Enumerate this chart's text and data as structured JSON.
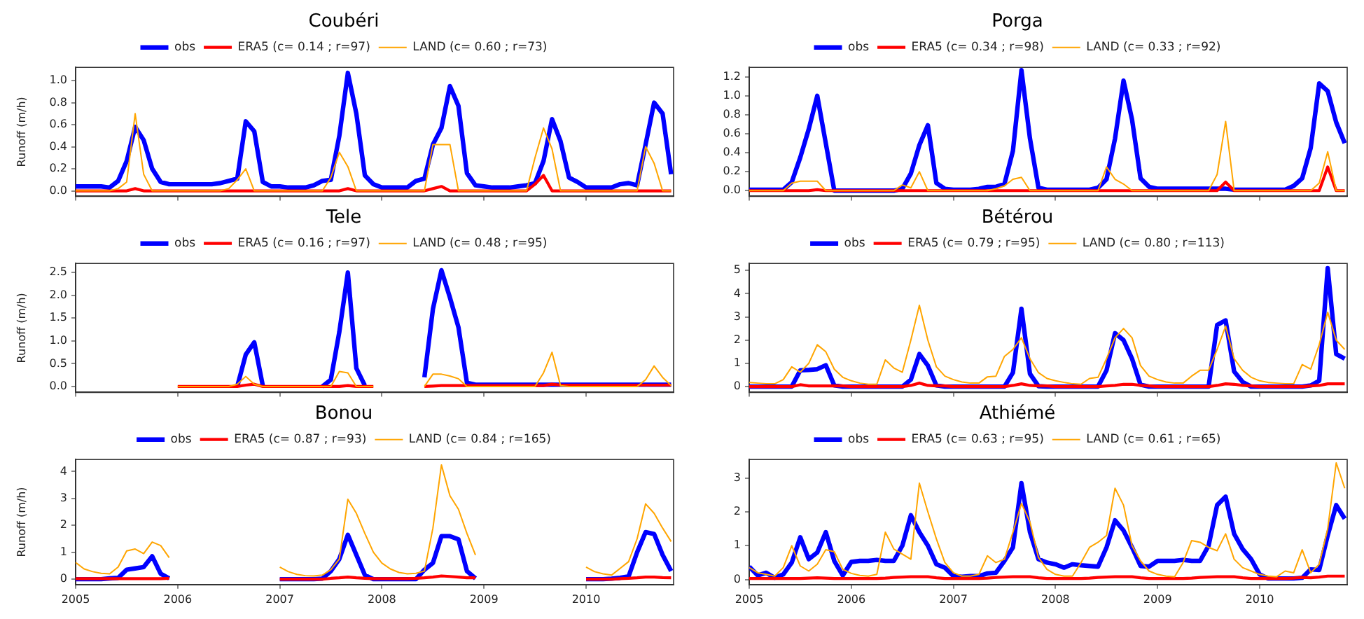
{
  "chart_data": [
    {
      "type": "line",
      "title": "Coubéri",
      "ylabel": "Runoff (m/h)",
      "legend": "top",
      "tick_labels": "y",
      "x": [
        "2005-01",
        "2005-02",
        "2005-03",
        "2005-04",
        "2005-05",
        "2005-06",
        "2005-07",
        "2005-08",
        "2005-09",
        "2005-10",
        "2005-11",
        "2005-12",
        "2006-01",
        "2006-02",
        "2006-03",
        "2006-04",
        "2006-05",
        "2006-06",
        "2006-07",
        "2006-08",
        "2006-09",
        "2006-10",
        "2006-11",
        "2006-12",
        "2007-01",
        "2007-02",
        "2007-03",
        "2007-04",
        "2007-05",
        "2007-06",
        "2007-07",
        "2007-08",
        "2007-09",
        "2007-10",
        "2007-11",
        "2007-12",
        "2008-01",
        "2008-02",
        "2008-03",
        "2008-04",
        "2008-05",
        "2008-06",
        "2008-07",
        "2008-08",
        "2008-09",
        "2008-10",
        "2008-11",
        "2008-12",
        "2009-01",
        "2009-02",
        "2009-03",
        "2009-04",
        "2009-05",
        "2009-06",
        "2009-07",
        "2009-08",
        "2009-09",
        "2009-10",
        "2009-11",
        "2009-12",
        "2010-01",
        "2010-02",
        "2010-03",
        "2010-04",
        "2010-05",
        "2010-06",
        "2010-07",
        "2010-08",
        "2010-09",
        "2010-10",
        "2010-11"
      ],
      "xlim": [
        "2005-01",
        "2010-11-10"
      ],
      "xticks": [
        "2005",
        "2006",
        "2007",
        "2008",
        "2009",
        "2010"
      ],
      "ylim": [
        -0.05,
        1.12
      ],
      "yticks": [
        {
          "value": 0,
          "label": "0.0"
        },
        {
          "value": 0.2,
          "label": "0.2"
        },
        {
          "value": 0.4,
          "label": "0.4"
        },
        {
          "value": 0.6,
          "label": "0.6"
        },
        {
          "value": 0.8,
          "label": "0.8"
        },
        {
          "value": 1,
          "label": "1.0"
        }
      ],
      "series": [
        {
          "name": "obs",
          "color": "#0000ff",
          "values": [
            0.04,
            0.04,
            0.04,
            0.04,
            0.03,
            0.09,
            0.27,
            0.58,
            0.46,
            0.2,
            0.08,
            0.06,
            0.06,
            0.06,
            0.06,
            0.06,
            0.06,
            0.07,
            0.09,
            0.11,
            0.63,
            0.54,
            0.08,
            0.04,
            0.04,
            0.03,
            0.03,
            0.03,
            0.05,
            0.09,
            0.1,
            0.5,
            1.07,
            0.7,
            0.14,
            0.06,
            0.03,
            0.03,
            0.03,
            0.03,
            0.09,
            0.11,
            0.42,
            0.57,
            0.95,
            0.77,
            0.16,
            0.05,
            0.04,
            0.03,
            0.03,
            0.03,
            0.04,
            0.05,
            0.07,
            0.27,
            0.65,
            0.45,
            0.12,
            0.08,
            0.03,
            0.03,
            0.03,
            0.03,
            0.06,
            0.07,
            0.05,
            0.42,
            0.8,
            0.7,
            0.15
          ]
        },
        {
          "name": "ERA5 (c= 0.14 ; r=97)",
          "color": "#ff0000",
          "values": [
            0,
            0,
            0,
            0,
            0,
            0,
            0,
            0.02,
            0,
            0,
            0,
            0,
            0,
            0,
            0,
            0,
            0,
            0,
            0,
            0,
            0,
            0,
            0,
            0,
            0,
            0,
            0,
            0,
            0,
            0,
            0,
            0,
            0.02,
            0,
            0,
            0,
            0,
            0,
            0,
            0,
            0,
            0,
            0.02,
            0.04,
            0,
            0,
            0,
            0,
            0,
            0,
            0,
            0,
            0,
            0,
            0.06,
            0.14,
            0,
            0,
            0,
            0,
            0,
            0,
            0,
            0,
            0,
            0,
            0,
            0,
            0,
            0,
            0
          ]
        },
        {
          "name": "LAND (c= 0.60 ; r=73)",
          "color": "#ffa500",
          "values": [
            0,
            0,
            0,
            0,
            0,
            0.02,
            0.08,
            0.7,
            0.15,
            0,
            0,
            0,
            0,
            0,
            0,
            0,
            0,
            0,
            0.02,
            0.1,
            0.2,
            0,
            0,
            0,
            0,
            0,
            0,
            0,
            0,
            0,
            0.12,
            0.35,
            0.22,
            0,
            0,
            0,
            0,
            0,
            0,
            0,
            0,
            0,
            0.42,
            0.42,
            0.42,
            0,
            0,
            0,
            0,
            0,
            0,
            0,
            0,
            0,
            0.3,
            0.57,
            0.38,
            0,
            0,
            0,
            0,
            0,
            0,
            0,
            0,
            0,
            0,
            0.4,
            0.25,
            0,
            0
          ]
        }
      ]
    },
    {
      "type": "line",
      "title": "Porga",
      "legend": "top",
      "tick_labels": "y",
      "x": [
        "2005-01",
        "2005-02",
        "2005-03",
        "2005-04",
        "2005-05",
        "2005-06",
        "2005-07",
        "2005-08",
        "2005-09",
        "2005-10",
        "2005-11",
        "2005-12",
        "2006-01",
        "2006-02",
        "2006-03",
        "2006-04",
        "2006-05",
        "2006-06",
        "2006-07",
        "2006-08",
        "2006-09",
        "2006-10",
        "2006-11",
        "2006-12",
        "2007-01",
        "2007-02",
        "2007-03",
        "2007-04",
        "2007-05",
        "2007-06",
        "2007-07",
        "2007-08",
        "2007-09",
        "2007-10",
        "2007-11",
        "2007-12",
        "2008-01",
        "2008-02",
        "2008-03",
        "2008-04",
        "2008-05",
        "2008-06",
        "2008-07",
        "2008-08",
        "2008-09",
        "2008-10",
        "2008-11",
        "2008-12",
        "2009-01",
        "2009-02",
        "2009-03",
        "2009-04",
        "2009-05",
        "2009-06",
        "2009-07",
        "2009-08",
        "2009-09",
        "2009-10",
        "2009-11",
        "2009-12",
        "2010-01",
        "2010-02",
        "2010-03",
        "2010-04",
        "2010-05",
        "2010-06",
        "2010-07",
        "2010-08",
        "2010-09",
        "2010-10",
        "2010-11"
      ],
      "xlim": [
        "2005-01",
        "2010-11-10"
      ],
      "xticks": [
        "2005",
        "2006",
        "2007",
        "2008",
        "2009",
        "2010"
      ],
      "ylim": [
        -0.06,
        1.3
      ],
      "yticks": [
        {
          "value": 0,
          "label": "0.0"
        },
        {
          "value": 0.2,
          "label": "0.2"
        },
        {
          "value": 0.4,
          "label": "0.4"
        },
        {
          "value": 0.6,
          "label": "0.6"
        },
        {
          "value": 0.8,
          "label": "0.8"
        },
        {
          "value": 1,
          "label": "1.0"
        },
        {
          "value": 1.2,
          "label": "1.2"
        }
      ],
      "series": [
        {
          "name": "obs",
          "color": "#0000ff",
          "values": [
            0.01,
            0.01,
            0.01,
            0.01,
            0.01,
            0.09,
            0.35,
            0.65,
            1.0,
            0.5,
            0,
            0,
            0,
            0,
            0,
            0,
            0,
            0,
            0.02,
            0.18,
            0.48,
            0.69,
            0.08,
            0.02,
            0.01,
            0.01,
            0.01,
            0.02,
            0.04,
            0.04,
            0.07,
            0.42,
            1.27,
            0.55,
            0.03,
            0.01,
            0.01,
            0.01,
            0.01,
            0.01,
            0.01,
            0.03,
            0.12,
            0.55,
            1.16,
            0.75,
            0.13,
            0.04,
            0.02,
            0.02,
            0.02,
            0.02,
            0.02,
            0.02,
            0.02,
            0.02,
            0.02,
            0.01,
            0.01,
            0.01,
            0.01,
            0.01,
            0.01,
            0.01,
            0.05,
            0.13,
            0.45,
            1.13,
            1.05,
            0.72,
            0.5
          ]
        },
        {
          "name": "ERA5 (c= 0.34 ; r=98)",
          "color": "#ff0000",
          "values": [
            0,
            0,
            0,
            0,
            0,
            0,
            0,
            0,
            0.01,
            0,
            0,
            0,
            0,
            0,
            0,
            0,
            0,
            0,
            0,
            0,
            0,
            0,
            0,
            0,
            0,
            0,
            0,
            0,
            0,
            0,
            0,
            0,
            0,
            0,
            0,
            0,
            0,
            0,
            0,
            0,
            0,
            0,
            0,
            0,
            0,
            0,
            0,
            0,
            0,
            0,
            0,
            0,
            0,
            0,
            0,
            0,
            0.09,
            0,
            0,
            0,
            0,
            0,
            0,
            0,
            0,
            0,
            0,
            0,
            0.25,
            0,
            0
          ]
        },
        {
          "name": "LAND (c= 0.33 ; r=92)",
          "color": "#ffa500",
          "values": [
            0,
            0,
            0,
            0,
            0,
            0.08,
            0.1,
            0.1,
            0.1,
            0,
            0,
            0,
            0,
            0,
            0,
            0,
            0,
            0,
            0.06,
            0.03,
            0.2,
            0,
            0,
            0,
            0,
            0,
            0,
            0,
            0,
            0.02,
            0.05,
            0.12,
            0.14,
            0,
            0,
            0,
            0,
            0,
            0,
            0,
            0,
            0,
            0.25,
            0.12,
            0.07,
            0,
            0,
            0,
            0,
            0,
            0,
            0,
            0,
            0,
            0,
            0.17,
            0.73,
            0,
            0,
            0,
            0,
            0,
            0,
            0,
            0,
            0,
            0,
            0.08,
            0.41,
            0,
            0
          ]
        }
      ]
    },
    {
      "type": "line",
      "title": "Tele",
      "ylabel": "Runoff (m/h)",
      "legend": "top",
      "tick_labels": "y",
      "x": [
        "2006-01",
        "2006-02",
        "2006-03",
        "2006-04",
        "2006-05",
        "2006-06",
        "2006-07",
        "2006-08",
        "2006-09",
        "2006-10",
        "2006-11",
        "2006-12",
        "2007-01",
        "2007-02",
        "2007-03",
        "2007-04",
        "2007-05",
        "2007-06",
        "2007-07",
        "2007-08",
        "2007-09",
        "2007-10",
        "2007-11",
        "2007-12",
        "2008-01",
        "2008-02",
        "2008-03",
        "2008-04",
        "2008-05",
        "2008-06",
        "2008-07",
        "2008-08",
        "2008-09",
        "2008-10",
        "2008-11",
        "2008-12",
        "2009-01",
        "2009-02",
        "2009-03",
        "2009-04",
        "2009-05",
        "2009-06",
        "2009-07",
        "2009-08",
        "2009-09",
        "2009-10",
        "2009-11",
        "2009-12",
        "2010-01",
        "2010-02",
        "2010-03",
        "2010-04",
        "2010-05",
        "2010-06",
        "2010-07",
        "2010-08",
        "2010-09",
        "2010-10",
        "2010-11"
      ],
      "xlim": [
        "2005-01",
        "2010-11-10"
      ],
      "xticks": [
        "2005",
        "2006",
        "2007",
        "2008",
        "2009",
        "2010"
      ],
      "ylim": [
        -0.13,
        2.7
      ],
      "yticks": [
        {
          "value": 0,
          "label": "0.0"
        },
        {
          "value": 0.5,
          "label": "0.5"
        },
        {
          "value": 1,
          "label": "1.0"
        },
        {
          "value": 1.5,
          "label": "1.5"
        },
        {
          "value": 2,
          "label": "2.0"
        },
        {
          "value": 2.5,
          "label": "2.5"
        }
      ],
      "series": [
        {
          "name": "obs",
          "color": "#0000ff",
          "values": [
            null,
            null,
            null,
            null,
            null,
            null,
            null,
            0,
            0.7,
            0.97,
            0.02,
            null,
            null,
            null,
            null,
            null,
            null,
            0,
            0.15,
            1.2,
            2.5,
            0.4,
            0.02,
            null,
            null,
            null,
            null,
            null,
            null,
            0.2,
            1.7,
            2.55,
            1.95,
            1.3,
            0.08,
            0.04,
            0.04,
            0.04,
            0.04,
            0.04,
            0.04,
            0.04,
            0.04,
            0.04,
            0.04,
            0.04,
            0.04,
            0.04,
            0.04,
            0.04,
            0.04,
            0.04,
            0.04,
            0.04,
            0.04,
            0.04,
            0.04,
            0.04,
            0.04
          ]
        },
        {
          "name": "ERA5 (c= 0.16 ; r=97)",
          "color": "#ff0000",
          "values": [
            0,
            0,
            0,
            0,
            0,
            0,
            0,
            0,
            0.03,
            0.05,
            0,
            0,
            0,
            0,
            0,
            0,
            0,
            0,
            0,
            0,
            0.02,
            0,
            0,
            0,
            null,
            null,
            null,
            null,
            null,
            0,
            0.01,
            0.02,
            0.02,
            0.02,
            0.02,
            0.02,
            0.02,
            0.02,
            0.02,
            0.02,
            0.02,
            0.02,
            0.02,
            0.02,
            0.05,
            0.03,
            0.03,
            0.03,
            0.03,
            0.03,
            0.03,
            0.03,
            0.03,
            0.03,
            0.03,
            0.03,
            0.03,
            0.03,
            0.03
          ]
        },
        {
          "name": "LAND (c= 0.48 ; r=95)",
          "color": "#ffa500",
          "values": [
            0,
            0,
            0,
            0,
            0,
            0,
            0,
            0.05,
            0.22,
            0.05,
            0,
            0,
            0,
            0,
            0,
            0,
            0,
            0,
            0,
            0.33,
            0.3,
            0,
            0,
            0,
            null,
            null,
            null,
            null,
            null,
            0,
            0.27,
            0.27,
            0.23,
            0.17,
            0,
            0,
            0,
            0,
            0,
            0,
            0,
            0,
            0,
            0.3,
            0.75,
            0.02,
            0,
            0,
            0,
            0,
            0,
            0,
            0,
            0,
            0,
            0.15,
            0.45,
            0.2,
            0.02
          ]
        }
      ]
    },
    {
      "type": "line",
      "title": "Bétérou",
      "legend": "top",
      "tick_labels": "y",
      "x": [
        "2005-01",
        "2005-02",
        "2005-03",
        "2005-04",
        "2005-05",
        "2005-06",
        "2005-07",
        "2005-08",
        "2005-09",
        "2005-10",
        "2005-11",
        "2005-12",
        "2006-01",
        "2006-02",
        "2006-03",
        "2006-04",
        "2006-05",
        "2006-06",
        "2006-07",
        "2006-08",
        "2006-09",
        "2006-10",
        "2006-11",
        "2006-12",
        "2007-01",
        "2007-02",
        "2007-03",
        "2007-04",
        "2007-05",
        "2007-06",
        "2007-07",
        "2007-08",
        "2007-09",
        "2007-10",
        "2007-11",
        "2007-12",
        "2008-01",
        "2008-02",
        "2008-03",
        "2008-04",
        "2008-05",
        "2008-06",
        "2008-07",
        "2008-08",
        "2008-09",
        "2008-10",
        "2008-11",
        "2008-12",
        "2009-01",
        "2009-02",
        "2009-03",
        "2009-04",
        "2009-05",
        "2009-06",
        "2009-07",
        "2009-08",
        "2009-09",
        "2009-10",
        "2009-11",
        "2009-12",
        "2010-01",
        "2010-02",
        "2010-03",
        "2010-04",
        "2010-05",
        "2010-06",
        "2010-07",
        "2010-08",
        "2010-09",
        "2010-10",
        "2010-11"
      ],
      "xlim": [
        "2005-01",
        "2010-11-10"
      ],
      "xticks": [
        "2005",
        "2006",
        "2007",
        "2008",
        "2009",
        "2010"
      ],
      "ylim": [
        -0.25,
        5.3
      ],
      "yticks": [
        0,
        1,
        2,
        3,
        4,
        5
      ],
      "series": [
        {
          "name": "obs",
          "color": "#0000ff",
          "values": [
            0,
            0,
            0,
            0,
            0,
            0,
            0.7,
            0.72,
            0.75,
            0.92,
            0.05,
            0,
            0,
            0,
            0,
            0,
            0,
            0,
            0,
            0.3,
            1.4,
            0.9,
            0.05,
            0,
            0,
            0,
            0,
            0,
            0,
            0,
            0,
            0.6,
            3.35,
            0.55,
            0.02,
            0,
            0,
            0,
            0,
            0,
            0,
            0,
            0.7,
            2.3,
            2.0,
            1.2,
            0.08,
            0,
            0,
            0,
            0,
            0,
            0,
            0,
            0,
            2.65,
            2.85,
            0.65,
            0.2,
            0,
            0,
            0,
            0,
            0,
            0,
            0,
            0.05,
            0.25,
            5.1,
            1.4,
            1.2
          ]
        },
        {
          "name": "ERA5 (c= 0.79 ; r=95)",
          "color": "#ff0000",
          "values": [
            0,
            0,
            0,
            0,
            0,
            0,
            0.08,
            0.03,
            0.03,
            0.03,
            0.03,
            0.03,
            0,
            0,
            0,
            0,
            0,
            0,
            0,
            0.05,
            0.15,
            0.05,
            0.03,
            0.03,
            0,
            0,
            0,
            0,
            0,
            0,
            0,
            0.05,
            0.12,
            0.05,
            0.03,
            0.03,
            0,
            0,
            0,
            0,
            0,
            0,
            0.03,
            0.05,
            0.1,
            0.1,
            0.05,
            0.03,
            0,
            0,
            0,
            0,
            0,
            0,
            0,
            0.05,
            0.12,
            0.1,
            0.05,
            0.03,
            0,
            0,
            0,
            0,
            0,
            0,
            0.03,
            0.05,
            0.12,
            0.12,
            0.12
          ]
        },
        {
          "name": "LAND (c= 0.80 ; r=113)",
          "color": "#ffa500",
          "values": [
            0.18,
            0.15,
            0.12,
            0.12,
            0.3,
            0.85,
            0.62,
            1.0,
            1.8,
            1.5,
            0.75,
            0.4,
            0.25,
            0.15,
            0.1,
            0.1,
            1.15,
            0.8,
            0.62,
            2.0,
            3.5,
            2.0,
            0.85,
            0.45,
            0.3,
            0.2,
            0.15,
            0.15,
            0.42,
            0.45,
            1.3,
            1.6,
            2.1,
            1.2,
            0.6,
            0.35,
            0.25,
            0.18,
            0.12,
            0.1,
            0.35,
            0.4,
            1.2,
            2.1,
            2.5,
            2.1,
            0.9,
            0.45,
            0.3,
            0.2,
            0.15,
            0.15,
            0.45,
            0.7,
            0.7,
            1.6,
            2.6,
            1.2,
            0.7,
            0.4,
            0.25,
            0.18,
            0.15,
            0.12,
            0.12,
            0.95,
            0.75,
            1.8,
            3.2,
            2.0,
            1.6
          ]
        }
      ]
    },
    {
      "type": "line",
      "title": "Bonou",
      "ylabel": "Runoff (m/h)",
      "legend": "top",
      "x": [
        "2005-01",
        "2005-02",
        "2005-03",
        "2005-04",
        "2005-05",
        "2005-06",
        "2005-07",
        "2005-08",
        "2005-09",
        "2005-10",
        "2005-11",
        "2005-12",
        "2006-01",
        "2006-02",
        "2006-03",
        "2006-04",
        "2006-05",
        "2006-06",
        "2006-07",
        "2006-08",
        "2006-09",
        "2006-10",
        "2006-11",
        "2006-12",
        "2007-01",
        "2007-02",
        "2007-03",
        "2007-04",
        "2007-05",
        "2007-06",
        "2007-07",
        "2007-08",
        "2007-09",
        "2007-10",
        "2007-11",
        "2007-12",
        "2008-01",
        "2008-02",
        "2008-03",
        "2008-04",
        "2008-05",
        "2008-06",
        "2008-07",
        "2008-08",
        "2008-09",
        "2008-10",
        "2008-11",
        "2008-12",
        "2009-01",
        "2009-02",
        "2009-03",
        "2009-04",
        "2009-05",
        "2009-06",
        "2009-07",
        "2009-08",
        "2009-09",
        "2009-10",
        "2009-11",
        "2009-12",
        "2010-01",
        "2010-02",
        "2010-03",
        "2010-04",
        "2010-05",
        "2010-06",
        "2010-07",
        "2010-08",
        "2010-09",
        "2010-10",
        "2010-11"
      ],
      "xlim": [
        "2005-01",
        "2010-11-10"
      ],
      "xticks": [
        "2005",
        "2006",
        "2007",
        "2008",
        "2009",
        "2010"
      ],
      "ylim": [
        -0.2,
        4.45
      ],
      "yticks": [
        0,
        1,
        2,
        3,
        4
      ],
      "series": [
        {
          "name": "obs",
          "color": "#0000ff",
          "values": [
            0,
            0,
            0,
            0,
            0.03,
            0.05,
            0.35,
            0.4,
            0.45,
            0.85,
            0.2,
            0.03,
            null,
            null,
            null,
            null,
            null,
            null,
            null,
            null,
            null,
            null,
            null,
            null,
            0,
            0,
            0,
            0,
            0,
            0.02,
            0.3,
            0.75,
            1.65,
            0.9,
            0.15,
            0,
            0,
            0,
            0,
            0,
            0,
            0.35,
            0.6,
            1.6,
            1.6,
            1.48,
            0.3,
            0.03,
            null,
            null,
            null,
            null,
            null,
            null,
            null,
            null,
            null,
            null,
            null,
            null,
            0,
            0,
            0,
            0.02,
            0.05,
            0.1,
            1.0,
            1.75,
            1.68,
            0.9,
            0.3
          ]
        },
        {
          "name": "ERA5 (c= 0.87 ; r=93)",
          "color": "#ff0000",
          "values": [
            0.02,
            0.02,
            0.02,
            0.02,
            0.02,
            0.02,
            0.02,
            0.02,
            0.02,
            0.02,
            0.02,
            0.03,
            null,
            null,
            null,
            null,
            null,
            null,
            null,
            null,
            null,
            null,
            null,
            null,
            0,
            0,
            0,
            0,
            0,
            0,
            0.03,
            0.05,
            0.08,
            0.05,
            0.03,
            0.02,
            0.02,
            0.02,
            0.02,
            0.02,
            0.03,
            0.05,
            0.08,
            0.12,
            0.1,
            0.08,
            0.05,
            0.05,
            null,
            null,
            null,
            null,
            null,
            null,
            null,
            null,
            null,
            null,
            null,
            null,
            0,
            0,
            0,
            0,
            0.02,
            0.03,
            0.05,
            0.08,
            0.08,
            0.06,
            0.05
          ]
        },
        {
          "name": "LAND (c= 0.84 ; r=165)",
          "color": "#ffa500",
          "values": [
            0.62,
            0.38,
            0.28,
            0.22,
            0.2,
            0.45,
            1.05,
            1.12,
            0.95,
            1.38,
            1.25,
            0.8,
            null,
            null,
            null,
            null,
            null,
            null,
            null,
            null,
            null,
            null,
            null,
            null,
            0.45,
            0.28,
            0.18,
            0.13,
            0.12,
            0.15,
            0.35,
            0.75,
            2.97,
            2.45,
            1.7,
            1.0,
            0.6,
            0.38,
            0.25,
            0.2,
            0.22,
            0.3,
            1.9,
            4.25,
            3.1,
            2.6,
            1.7,
            0.9,
            null,
            null,
            null,
            null,
            null,
            null,
            null,
            null,
            null,
            null,
            null,
            null,
            0.45,
            0.28,
            0.2,
            0.15,
            0.4,
            0.65,
            1.5,
            2.8,
            2.45,
            1.9,
            1.4
          ]
        }
      ]
    },
    {
      "type": "line",
      "title": "Athiémé",
      "legend": "top",
      "x": [
        "2005-01",
        "2005-02",
        "2005-03",
        "2005-04",
        "2005-05",
        "2005-06",
        "2005-07",
        "2005-08",
        "2005-09",
        "2005-10",
        "2005-11",
        "2005-12",
        "2006-01",
        "2006-02",
        "2006-03",
        "2006-04",
        "2006-05",
        "2006-06",
        "2006-07",
        "2006-08",
        "2006-09",
        "2006-10",
        "2006-11",
        "2006-12",
        "2007-01",
        "2007-02",
        "2007-03",
        "2007-04",
        "2007-05",
        "2007-06",
        "2007-07",
        "2007-08",
        "2007-09",
        "2007-10",
        "2007-11",
        "2007-12",
        "2008-01",
        "2008-02",
        "2008-03",
        "2008-04",
        "2008-05",
        "2008-06",
        "2008-07",
        "2008-08",
        "2008-09",
        "2008-10",
        "2008-11",
        "2008-12",
        "2009-01",
        "2009-02",
        "2009-03",
        "2009-04",
        "2009-05",
        "2009-06",
        "2009-07",
        "2009-08",
        "2009-09",
        "2009-10",
        "2009-11",
        "2009-12",
        "2010-01",
        "2010-02",
        "2010-03",
        "2010-04",
        "2010-05",
        "2010-06",
        "2010-07",
        "2010-08",
        "2010-09",
        "2010-10",
        "2010-11"
      ],
      "xlim": [
        "2005-01",
        "2010-11-10"
      ],
      "xticks": [
        "2005",
        "2006",
        "2007",
        "2008",
        "2009",
        "2010"
      ],
      "ylim": [
        -0.15,
        3.55
      ],
      "yticks": [
        0,
        1,
        2,
        3
      ],
      "series": [
        {
          "name": "obs",
          "color": "#0000ff",
          "values": [
            0.38,
            0.12,
            0.2,
            0.05,
            0.15,
            0.5,
            1.25,
            0.6,
            0.8,
            1.4,
            0.55,
            0.12,
            0.52,
            0.55,
            0.55,
            0.58,
            0.55,
            0.55,
            1.0,
            1.9,
            1.4,
            1.0,
            0.45,
            0.35,
            0.1,
            0.08,
            0.1,
            0.1,
            0.18,
            0.2,
            0.55,
            0.95,
            2.85,
            1.4,
            0.6,
            0.5,
            0.45,
            0.35,
            0.45,
            0.42,
            0.4,
            0.38,
            0.95,
            1.75,
            1.45,
            0.95,
            0.4,
            0.38,
            0.55,
            0.55,
            0.55,
            0.58,
            0.55,
            0.55,
            1.0,
            2.2,
            2.45,
            1.35,
            0.9,
            0.6,
            0.15,
            0.03,
            0.03,
            0.03,
            0.03,
            0.05,
            0.3,
            0.28,
            1.3,
            2.2,
            1.8
          ]
        },
        {
          "name": "ERA5 (c= 0.63 ; r=95)",
          "color": "#ff0000",
          "values": [
            0.03,
            0.03,
            0.03,
            0.03,
            0.03,
            0.03,
            0.03,
            0.04,
            0.05,
            0.04,
            0.03,
            0.03,
            0.03,
            0.03,
            0.03,
            0.03,
            0.04,
            0.06,
            0.07,
            0.08,
            0.08,
            0.08,
            0.05,
            0.03,
            0.03,
            0.03,
            0.03,
            0.03,
            0.04,
            0.06,
            0.07,
            0.08,
            0.08,
            0.08,
            0.05,
            0.03,
            0.03,
            0.03,
            0.03,
            0.03,
            0.04,
            0.06,
            0.07,
            0.08,
            0.08,
            0.08,
            0.05,
            0.03,
            0.03,
            0.03,
            0.03,
            0.03,
            0.04,
            0.06,
            0.07,
            0.08,
            0.08,
            0.08,
            0.05,
            0.03,
            0.03,
            0.03,
            0.03,
            0.03,
            0.04,
            0.06,
            0.05,
            0.07,
            0.1,
            0.1,
            0.1
          ]
        },
        {
          "name": "LAND (c= 0.61 ; r=65)",
          "color": "#ffa500",
          "values": [
            0.35,
            0.2,
            0.15,
            0.1,
            0.35,
            1.0,
            0.4,
            0.25,
            0.45,
            0.88,
            0.82,
            0.3,
            0.18,
            0.12,
            0.1,
            0.15,
            1.4,
            0.9,
            0.75,
            0.6,
            2.85,
            2.0,
            1.2,
            0.5,
            0.2,
            0.1,
            0.1,
            0.15,
            0.7,
            0.5,
            0.6,
            1.4,
            2.25,
            1.7,
            0.65,
            0.3,
            0.15,
            0.1,
            0.1,
            0.5,
            0.95,
            1.1,
            1.3,
            2.7,
            2.2,
            1.0,
            0.55,
            0.25,
            0.15,
            0.1,
            0.08,
            0.5,
            1.15,
            1.1,
            0.95,
            0.85,
            1.35,
            0.6,
            0.35,
            0.25,
            0.15,
            0.1,
            0.08,
            0.25,
            0.2,
            0.88,
            0.2,
            0.45,
            1.5,
            3.45,
            2.7
          ]
        }
      ]
    }
  ]
}
